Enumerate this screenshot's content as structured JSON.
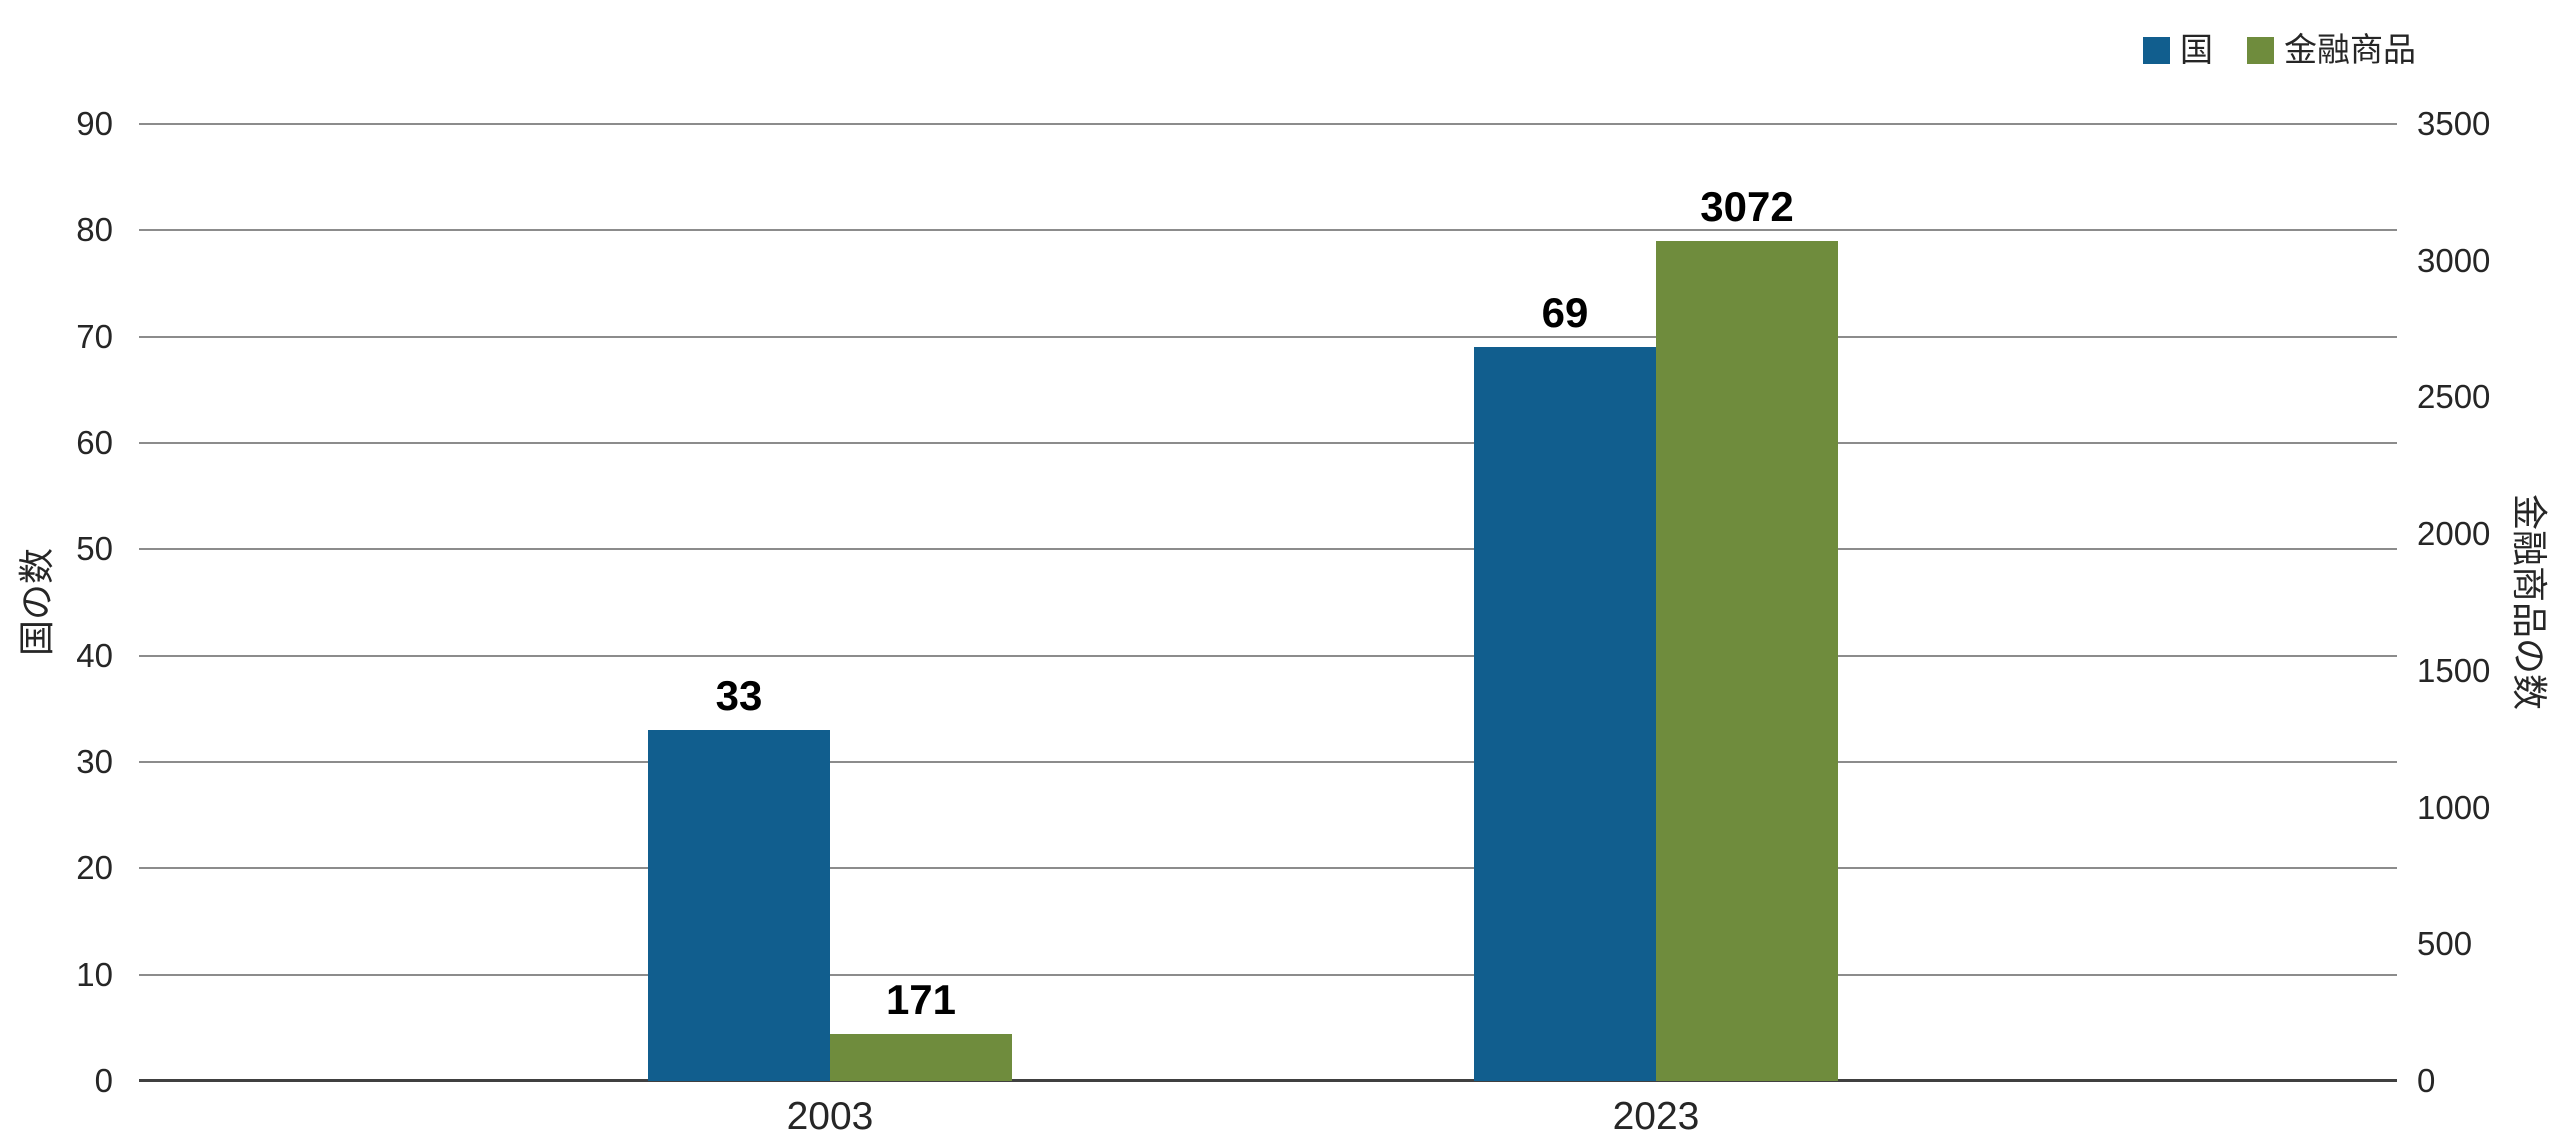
{
  "chart_data": {
    "type": "bar",
    "title": "",
    "categories": [
      "2003",
      "2023"
    ],
    "series": [
      {
        "name": "国",
        "axis": "left",
        "color": "#115e8e",
        "values": [
          33,
          69
        ]
      },
      {
        "name": "金融商品",
        "axis": "right",
        "color": "#6f8c3d",
        "values": [
          171,
          3072
        ]
      }
    ],
    "data_labels": {
      "国": [
        "33",
        "69"
      ],
      "金融商品": [
        "171",
        "3072"
      ]
    },
    "left_axis": {
      "title": "国の数",
      "min": 0,
      "max": 90,
      "step": 10,
      "ticks": [
        0,
        10,
        20,
        30,
        40,
        50,
        60,
        70,
        80,
        90
      ]
    },
    "right_axis": {
      "title": "金融商品の数",
      "min": 0,
      "max": 3500,
      "step": 500,
      "ticks": [
        0,
        500,
        1000,
        1500,
        2000,
        2500,
        3000,
        3500
      ]
    },
    "legend": {
      "position": "top-right",
      "entries": [
        "国",
        "金融商品"
      ]
    },
    "grid": true,
    "colors": {
      "background": "#ffffff",
      "gridline": "#8c8c8c",
      "axis_line": "#404040",
      "blue_series": "#115e8e",
      "green_series": "#6f8c3d"
    }
  }
}
